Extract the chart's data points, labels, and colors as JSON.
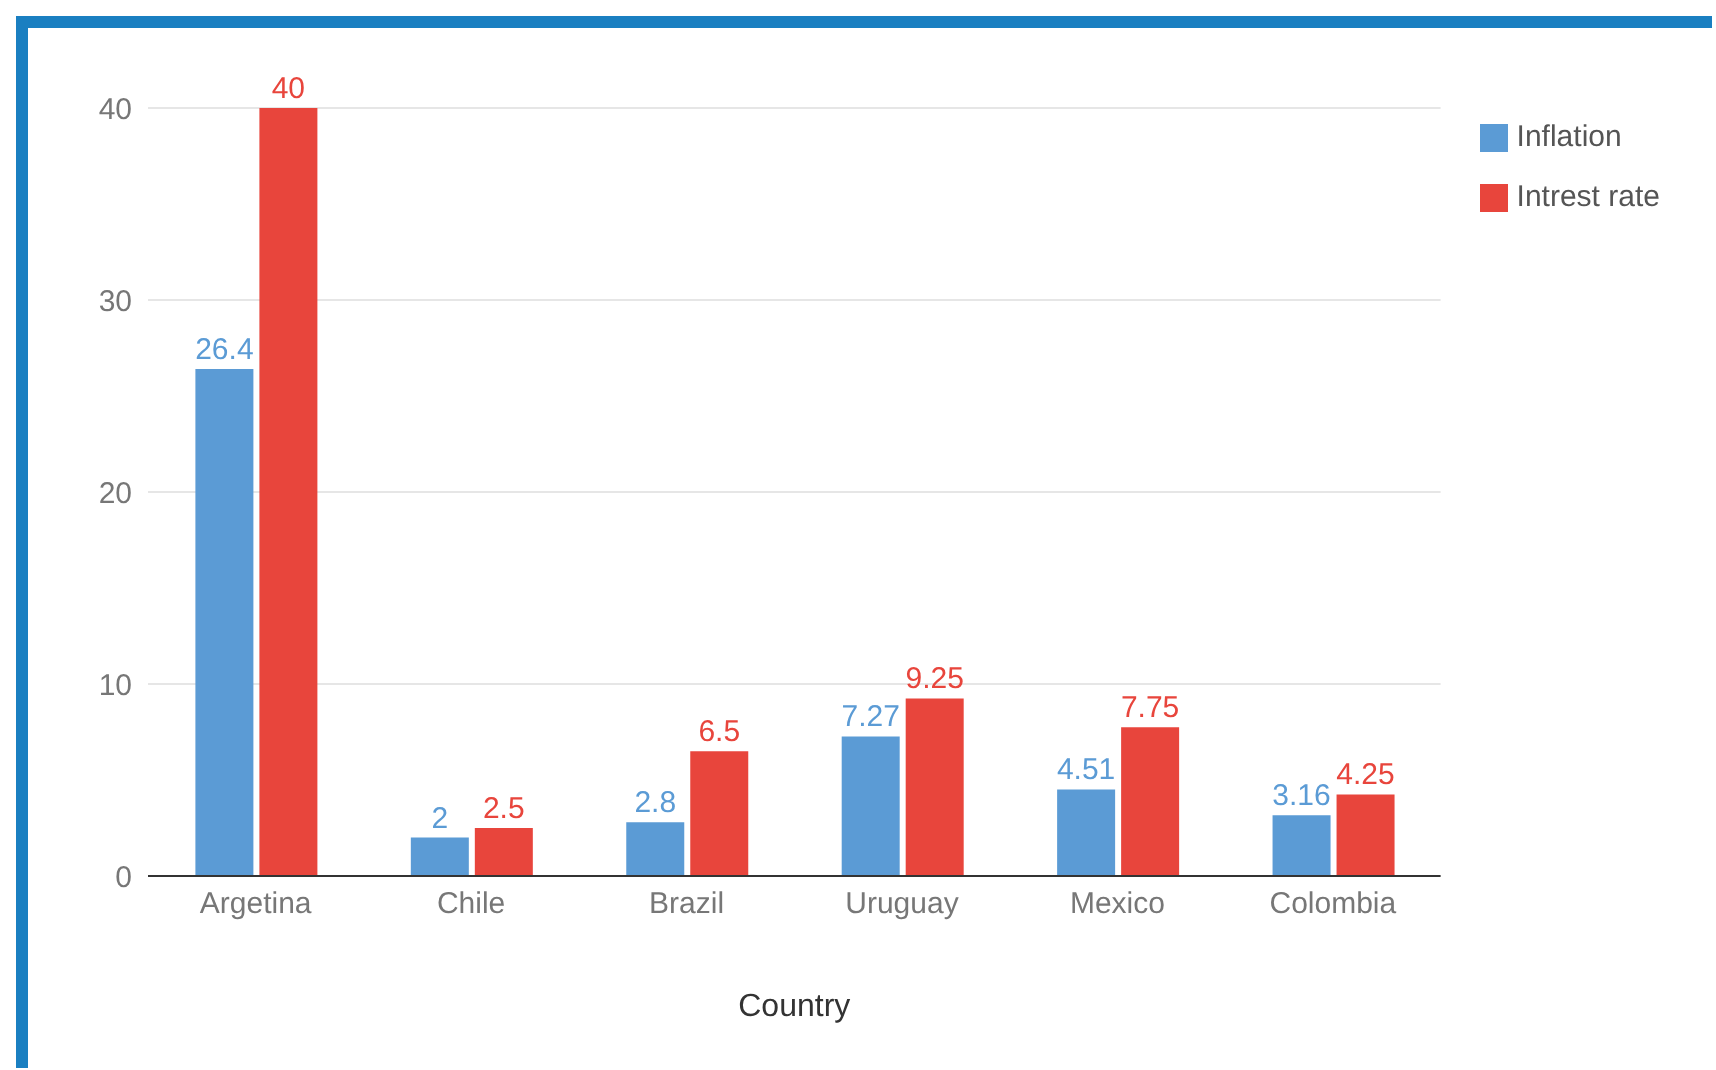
{
  "chart_data": {
    "type": "bar",
    "xlabel": "Country",
    "categories": [
      "Argetina",
      "Chile",
      "Brazil",
      "Uruguay",
      "Mexico",
      "Colombia"
    ],
    "series": [
      {
        "name": "Inflation",
        "color": "#5b9bd5",
        "values": [
          26.4,
          2,
          2.8,
          7.27,
          4.51,
          3.16
        ]
      },
      {
        "name": "Intrest rate",
        "color": "#e8453c",
        "values": [
          40,
          2.5,
          6.5,
          9.25,
          7.75,
          4.25
        ]
      }
    ],
    "ylim": [
      0,
      40
    ],
    "yticks": [
      0,
      10,
      20,
      30,
      40
    ],
    "grid": "y",
    "legend": "top right",
    "data_labels": true
  }
}
